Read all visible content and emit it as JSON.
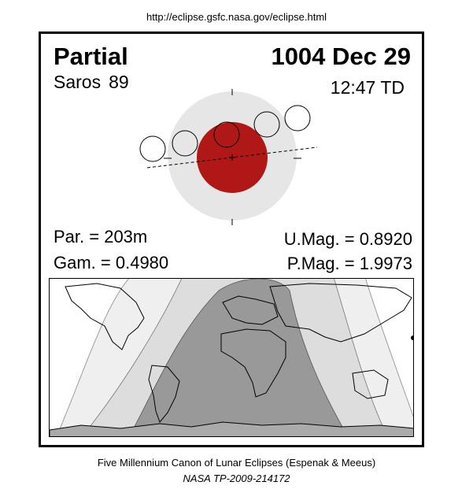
{
  "header": {
    "url": "http://eclipse.gsfc.nasa.gov/eclipse.html"
  },
  "eclipse": {
    "type": "Partial",
    "date": "1004 Dec 29",
    "saros_label": "Saros",
    "saros_number": "89",
    "time": "12:47 TD",
    "parameters": {
      "par": "Par. = 203m",
      "gam": "Gam. = 0.4980",
      "umag": "U.Mag. = 0.8920",
      "pmag": "P.Mag. = 1.9973"
    }
  },
  "colors": {
    "penumbra": "#e6e6e6",
    "umbra": "#b01818",
    "map_total": "#999999",
    "map_partial": "#bbbbbb",
    "map_penumbral": "#dddddd"
  },
  "footer": {
    "caption": "Five Millennium Canon of Lunar Eclipses (Espenak & Meeus)",
    "reference": "NASA TP-2009-214172"
  }
}
